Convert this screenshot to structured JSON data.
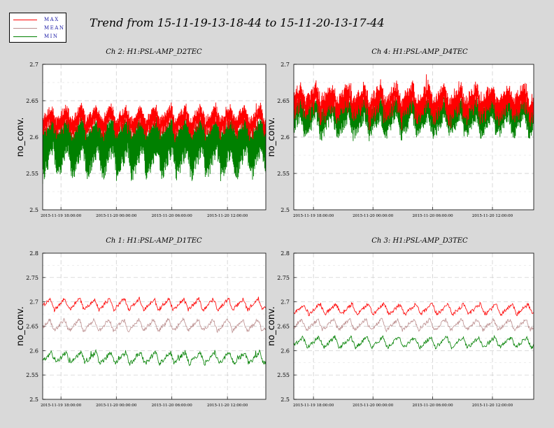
{
  "title": "Trend from 15-11-19-13-18-44 to 15-11-20-13-17-44",
  "legend": [
    {
      "label": "MAX",
      "color": "#ff0000"
    },
    {
      "label": "MEAN",
      "color": "#bc8f8f"
    },
    {
      "label": "MIN",
      "color": "#008000"
    }
  ],
  "chart_data": [
    {
      "type": "line",
      "title": "Ch 2: H1:PSL-AMP_D2TEC",
      "ylabel": "no_conv.",
      "ylim": [
        2.5,
        2.7
      ],
      "yticks": [
        "2.5",
        "2.55",
        "2.6",
        "2.65",
        "2.7"
      ],
      "xticks": [
        "2015-11-19 18:00:00",
        "2015-11-20 00:00:00",
        "2015-11-20 06:00:00",
        "2015-11-20 12:00:00"
      ],
      "xtick_fracs": [
        0.082,
        0.33,
        0.579,
        0.828
      ],
      "cycles": 15,
      "band_mode": true,
      "series": [
        {
          "name": "MAX",
          "color": "#ff0000",
          "base": 2.632,
          "amp": 0.01,
          "noise": 0.006,
          "spike": 0.02
        },
        {
          "name": "MIN",
          "color": "#008000",
          "base": 2.565,
          "amp": 0.02,
          "noise": 0.01,
          "spike": 0.03,
          "upper": 2.615
        }
      ]
    },
    {
      "type": "line",
      "title": "Ch 4: H1:PSL-AMP_D4TEC",
      "ylabel": "no_conv.",
      "ylim": [
        2.5,
        2.7
      ],
      "yticks": [
        "2.5",
        "2.55",
        "2.6",
        "2.65",
        "2.7"
      ],
      "xticks": [
        "2015-11-19 18:00:00",
        "2015-11-20 00:00:00",
        "2015-11-20 06:00:00",
        "2015-11-20 12:00:00"
      ],
      "xtick_fracs": [
        0.082,
        0.33,
        0.579,
        0.828
      ],
      "cycles": 15,
      "band_mode": true,
      "series": [
        {
          "name": "MAX",
          "color": "#ff0000",
          "base": 2.66,
          "amp": 0.012,
          "noise": 0.008,
          "spike": 0.02
        },
        {
          "name": "MIN",
          "color": "#008000",
          "base": 2.615,
          "amp": 0.014,
          "noise": 0.008,
          "spike": 0.02,
          "upper": 2.645
        }
      ]
    },
    {
      "type": "line",
      "title": "Ch 1: H1:PSL-AMP_D1TEC",
      "ylabel": "no_conv.",
      "ylim": [
        2.5,
        2.8
      ],
      "yticks": [
        "2.5",
        "2.55",
        "2.6",
        "2.65",
        "2.7",
        "2.75",
        "2.8"
      ],
      "xticks": [
        "2015-11-19 18:00:00",
        "2015-11-20 00:00:00",
        "2015-11-20 06:00:00",
        "2015-11-20 12:00:00"
      ],
      "xtick_fracs": [
        0.082,
        0.33,
        0.579,
        0.828
      ],
      "cycles": 15,
      "band_mode": false,
      "series": [
        {
          "name": "MAX",
          "color": "#ff0000",
          "base": 2.695,
          "amp": 0.012,
          "noise": 0.004,
          "spike": 0.0
        },
        {
          "name": "MEAN",
          "color": "#bc8f8f",
          "base": 2.652,
          "amp": 0.012,
          "noise": 0.004,
          "spike": 0.0
        },
        {
          "name": "MIN",
          "color": "#008000",
          "base": 2.585,
          "amp": 0.012,
          "noise": 0.005,
          "spike": 0.02
        }
      ]
    },
    {
      "type": "line",
      "title": "Ch 3: H1:PSL-AMP_D3TEC",
      "ylabel": "no_conv.",
      "ylim": [
        2.5,
        2.8
      ],
      "yticks": [
        "2.5",
        "2.55",
        "2.6",
        "2.65",
        "2.7",
        "2.75",
        "2.8"
      ],
      "xticks": [
        "2015-11-19 18:00:00",
        "2015-11-20 00:00:00",
        "2015-11-20 06:00:00",
        "2015-11-20 12:00:00"
      ],
      "xtick_fracs": [
        0.082,
        0.33,
        0.579,
        0.828
      ],
      "cycles": 15,
      "band_mode": false,
      "series": [
        {
          "name": "MAX",
          "color": "#ff0000",
          "base": 2.685,
          "amp": 0.011,
          "noise": 0.004,
          "spike": 0.0
        },
        {
          "name": "MEAN",
          "color": "#bc8f8f",
          "base": 2.653,
          "amp": 0.011,
          "noise": 0.004,
          "spike": 0.0
        },
        {
          "name": "MIN",
          "color": "#008000",
          "base": 2.617,
          "amp": 0.011,
          "noise": 0.004,
          "spike": 0.0
        }
      ]
    }
  ]
}
